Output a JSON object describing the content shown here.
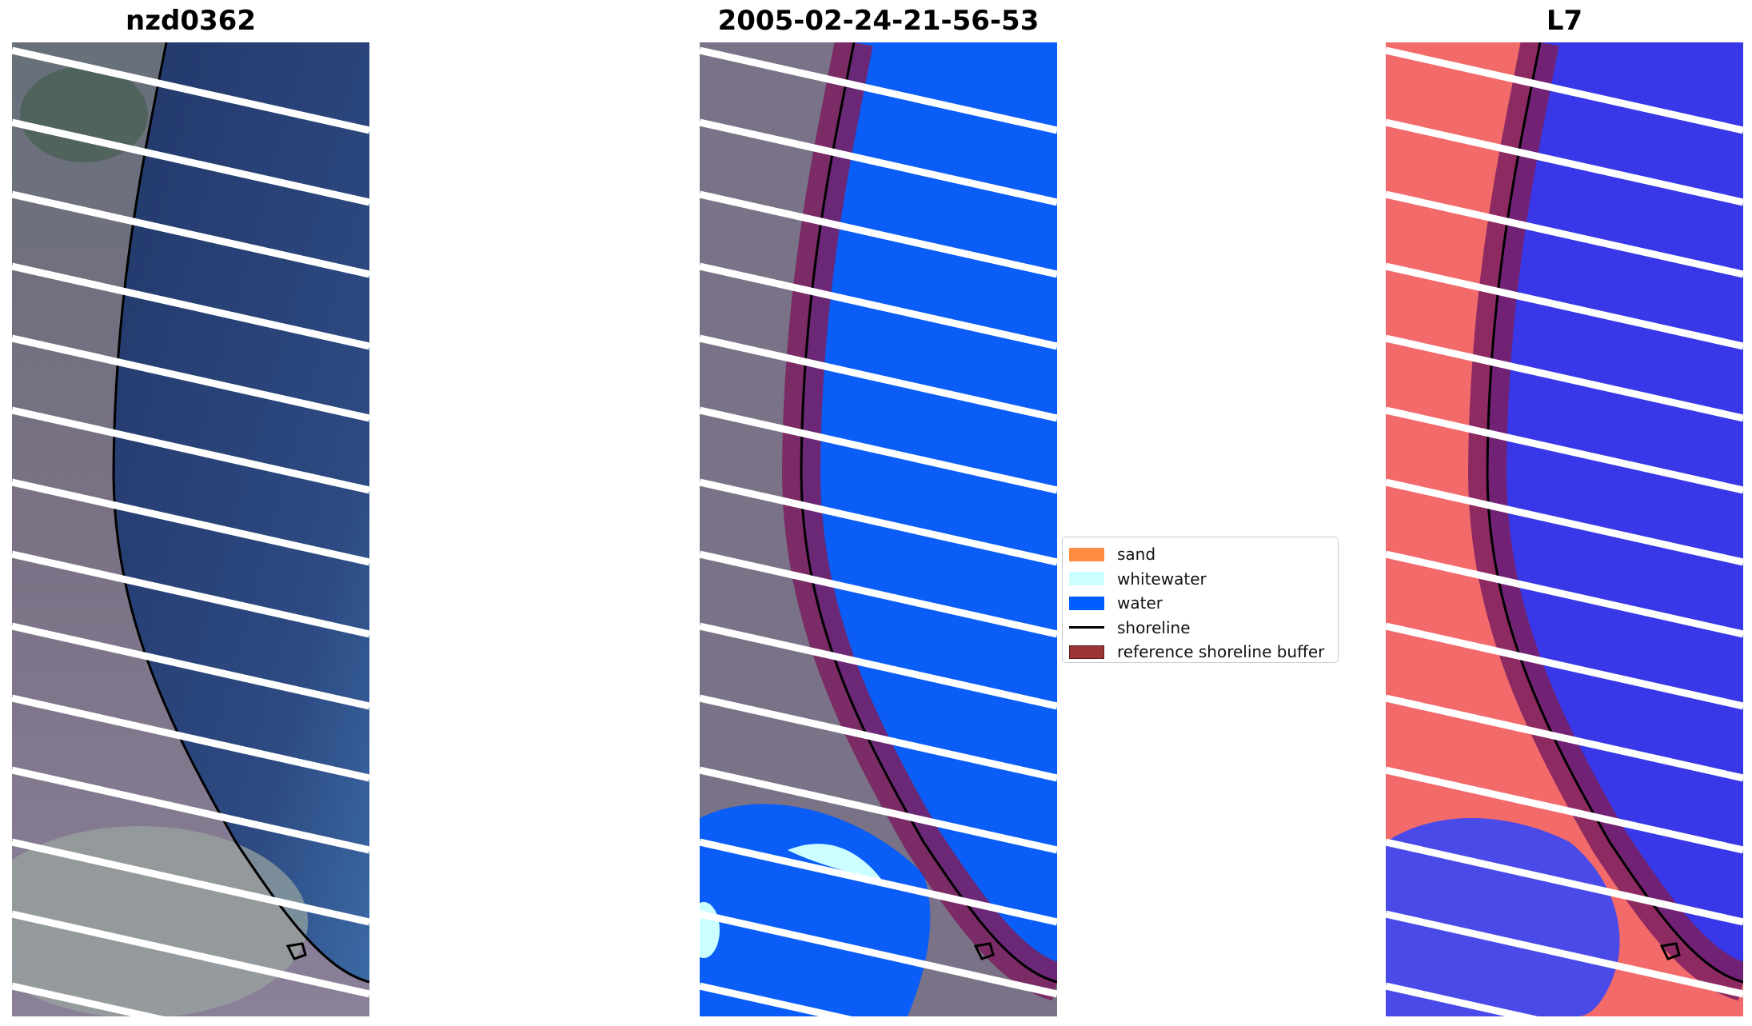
{
  "panels": [
    {
      "title": "nzd0362",
      "kind": "rgb"
    },
    {
      "title": "2005-02-24-21-56-53",
      "kind": "classified"
    },
    {
      "title": "L7",
      "kind": "index"
    }
  ],
  "legend": {
    "items": [
      {
        "label": "sand",
        "type": "patch",
        "color": "#ff8c40"
      },
      {
        "label": "whitewater",
        "type": "patch",
        "color": "#ccffff"
      },
      {
        "label": "water",
        "type": "patch",
        "color": "#005eff"
      },
      {
        "label": "shoreline",
        "type": "line",
        "color": "#000000"
      },
      {
        "label": "reference shoreline buffer",
        "type": "patch",
        "color": "#9c3535"
      }
    ]
  },
  "colors": {
    "land": "#7a7286",
    "sea_rgb": "#2c4478",
    "water_class": "#0a5df7",
    "buffer": "#7b1f5f",
    "index_land": "#f26a6a",
    "index_water": "#3838e8",
    "scanline_gap": "#ffffff"
  }
}
